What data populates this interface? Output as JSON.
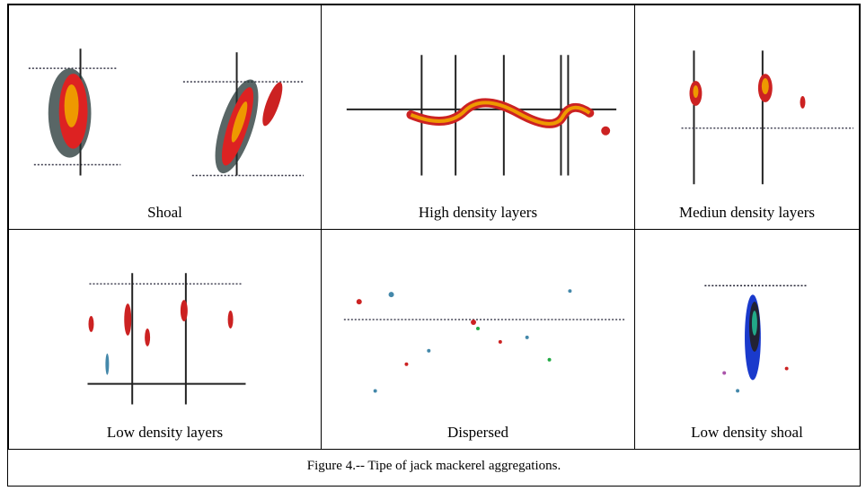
{
  "figure": {
    "panels": [
      {
        "id": "shoal",
        "label": "Shoal"
      },
      {
        "id": "high-density-layers",
        "label": "High density layers"
      },
      {
        "id": "medium-density-layers",
        "label": "Mediun density layers"
      },
      {
        "id": "low-density-layers",
        "label": "Low density layers"
      },
      {
        "id": "dispersed",
        "label": "Dispersed"
      },
      {
        "id": "low-density-shoal",
        "label": "Low density shoal"
      }
    ],
    "caption": "Figure 4.-- Tipe of jack mackerel aggregations."
  }
}
